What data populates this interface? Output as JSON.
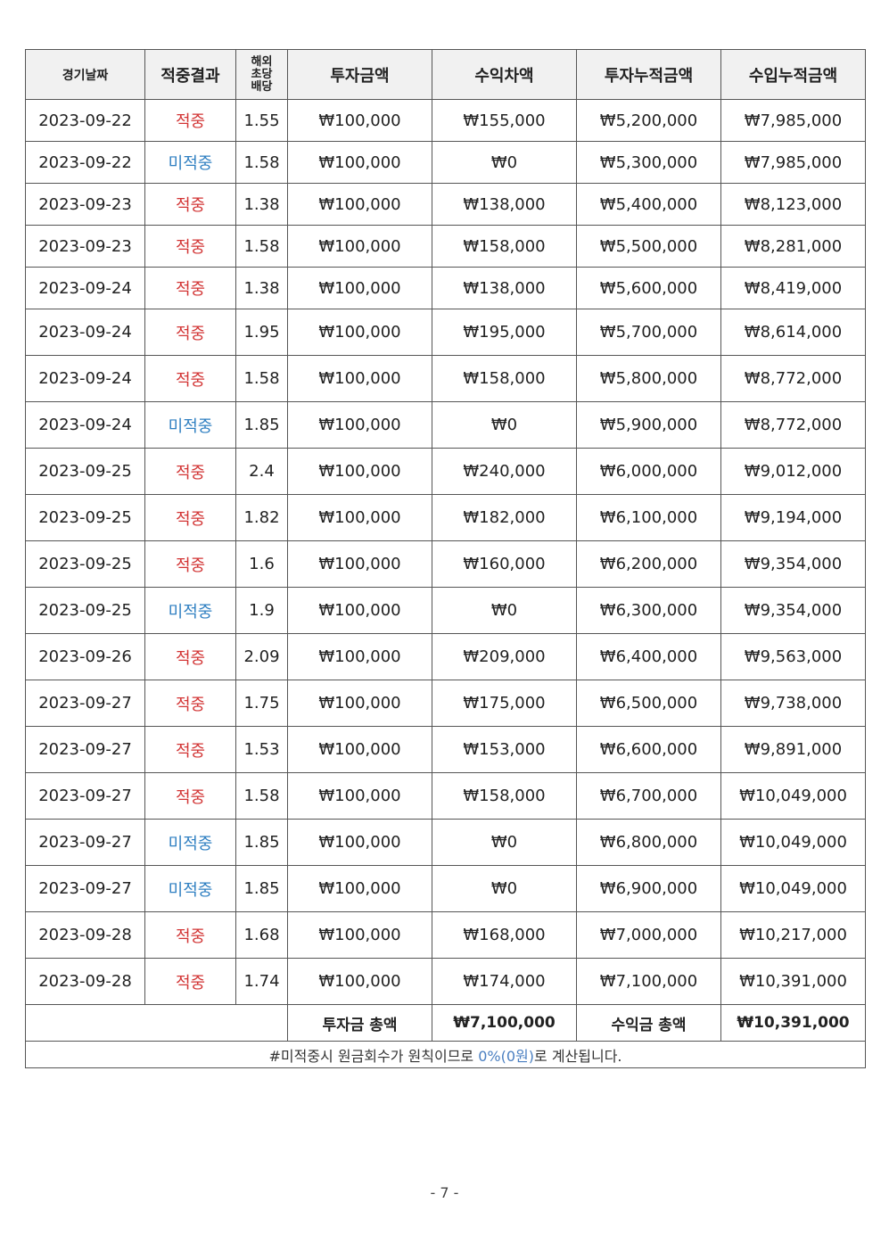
{
  "headers": {
    "date": "경기날짜",
    "result": "적중결과",
    "odds": "해외\n초당\n배당",
    "invest": "투자금액",
    "profit": "수익차액",
    "invest_cum": "투자누적금액",
    "income_cum": "수입누적금액"
  },
  "rows": [
    {
      "date": "2023-09-22",
      "result": "적중",
      "odds": "1.55",
      "invest": "₩100,000",
      "profit": "₩155,000",
      "invest_cum": "₩5,200,000",
      "income_cum": "₩7,985,000",
      "hit": true
    },
    {
      "date": "2023-09-22",
      "result": "미적중",
      "odds": "1.58",
      "invest": "₩100,000",
      "profit": "₩0",
      "invest_cum": "₩5,300,000",
      "income_cum": "₩7,985,000",
      "hit": false
    },
    {
      "date": "2023-09-23",
      "result": "적중",
      "odds": "1.38",
      "invest": "₩100,000",
      "profit": "₩138,000",
      "invest_cum": "₩5,400,000",
      "income_cum": "₩8,123,000",
      "hit": true
    },
    {
      "date": "2023-09-23",
      "result": "적중",
      "odds": "1.58",
      "invest": "₩100,000",
      "profit": "₩158,000",
      "invest_cum": "₩5,500,000",
      "income_cum": "₩8,281,000",
      "hit": true
    },
    {
      "date": "2023-09-24",
      "result": "적중",
      "odds": "1.38",
      "invest": "₩100,000",
      "profit": "₩138,000",
      "invest_cum": "₩5,600,000",
      "income_cum": "₩8,419,000",
      "hit": true
    },
    {
      "date": "2023-09-24",
      "result": "적중",
      "odds": "1.95",
      "invest": "₩100,000",
      "profit": "₩195,000",
      "invest_cum": "₩5,700,000",
      "income_cum": "₩8,614,000",
      "hit": true
    },
    {
      "date": "2023-09-24",
      "result": "적중",
      "odds": "1.58",
      "invest": "₩100,000",
      "profit": "₩158,000",
      "invest_cum": "₩5,800,000",
      "income_cum": "₩8,772,000",
      "hit": true
    },
    {
      "date": "2023-09-24",
      "result": "미적중",
      "odds": "1.85",
      "invest": "₩100,000",
      "profit": "₩0",
      "invest_cum": "₩5,900,000",
      "income_cum": "₩8,772,000",
      "hit": false
    },
    {
      "date": "2023-09-25",
      "result": "적중",
      "odds": "2.4",
      "invest": "₩100,000",
      "profit": "₩240,000",
      "invest_cum": "₩6,000,000",
      "income_cum": "₩9,012,000",
      "hit": true
    },
    {
      "date": "2023-09-25",
      "result": "적중",
      "odds": "1.82",
      "invest": "₩100,000",
      "profit": "₩182,000",
      "invest_cum": "₩6,100,000",
      "income_cum": "₩9,194,000",
      "hit": true
    },
    {
      "date": "2023-09-25",
      "result": "적중",
      "odds": "1.6",
      "invest": "₩100,000",
      "profit": "₩160,000",
      "invest_cum": "₩6,200,000",
      "income_cum": "₩9,354,000",
      "hit": true
    },
    {
      "date": "2023-09-25",
      "result": "미적중",
      "odds": "1.9",
      "invest": "₩100,000",
      "profit": "₩0",
      "invest_cum": "₩6,300,000",
      "income_cum": "₩9,354,000",
      "hit": false
    },
    {
      "date": "2023-09-26",
      "result": "적중",
      "odds": "2.09",
      "invest": "₩100,000",
      "profit": "₩209,000",
      "invest_cum": "₩6,400,000",
      "income_cum": "₩9,563,000",
      "hit": true
    },
    {
      "date": "2023-09-27",
      "result": "적중",
      "odds": "1.75",
      "invest": "₩100,000",
      "profit": "₩175,000",
      "invest_cum": "₩6,500,000",
      "income_cum": "₩9,738,000",
      "hit": true
    },
    {
      "date": "2023-09-27",
      "result": "적중",
      "odds": "1.53",
      "invest": "₩100,000",
      "profit": "₩153,000",
      "invest_cum": "₩6,600,000",
      "income_cum": "₩9,891,000",
      "hit": true
    },
    {
      "date": "2023-09-27",
      "result": "적중",
      "odds": "1.58",
      "invest": "₩100,000",
      "profit": "₩158,000",
      "invest_cum": "₩6,700,000",
      "income_cum": "₩10,049,000",
      "hit": true
    },
    {
      "date": "2023-09-27",
      "result": "미적중",
      "odds": "1.85",
      "invest": "₩100,000",
      "profit": "₩0",
      "invest_cum": "₩6,800,000",
      "income_cum": "₩10,049,000",
      "hit": false
    },
    {
      "date": "2023-09-27",
      "result": "미적중",
      "odds": "1.85",
      "invest": "₩100,000",
      "profit": "₩0",
      "invest_cum": "₩6,900,000",
      "income_cum": "₩10,049,000",
      "hit": false
    },
    {
      "date": "2023-09-28",
      "result": "적중",
      "odds": "1.68",
      "invest": "₩100,000",
      "profit": "₩168,000",
      "invest_cum": "₩7,000,000",
      "income_cum": "₩10,217,000",
      "hit": true
    },
    {
      "date": "2023-09-28",
      "result": "적중",
      "odds": "1.74",
      "invest": "₩100,000",
      "profit": "₩174,000",
      "invest_cum": "₩7,100,000",
      "income_cum": "₩10,391,000",
      "hit": true
    }
  ],
  "totals": {
    "invest_label": "투자금 총액",
    "invest_value": "₩7,100,000",
    "income_label": "수익금 총액",
    "income_value": "₩10,391,000"
  },
  "note": {
    "before": "#미적중시 원금회수가 원칙이므로 ",
    "highlight": "0%(0원)",
    "after": "로 계산됩니다."
  },
  "page_number": "- 7 -",
  "colors": {
    "hit": "#d23434",
    "miss": "#2f7fc1"
  }
}
